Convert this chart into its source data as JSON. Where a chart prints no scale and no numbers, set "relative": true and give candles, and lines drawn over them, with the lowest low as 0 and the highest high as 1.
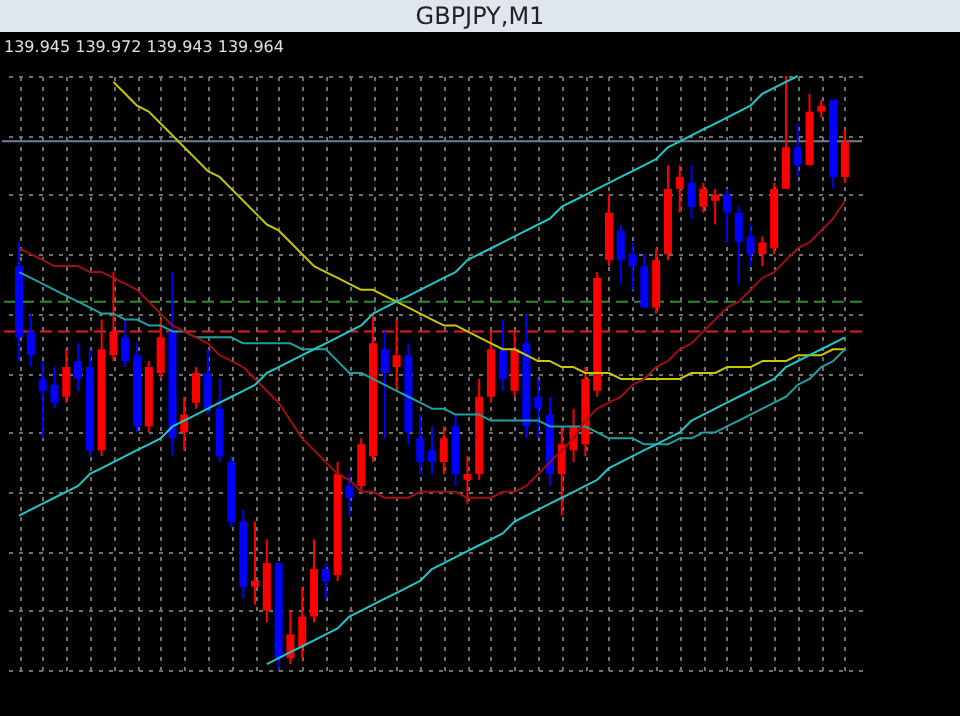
{
  "chart_data": {
    "type": "candlestick",
    "title": "GBPJPY,M1",
    "annotations": [
      "139.945 139.972 139.943 139.964"
    ],
    "relative": true,
    "grid": true,
    "categories": [
      null,
      null,
      null,
      null,
      null,
      null,
      null,
      null,
      null,
      null,
      null,
      null,
      null,
      null,
      null,
      null,
      null,
      null,
      null,
      null,
      null,
      null,
      null,
      null,
      null,
      null,
      null,
      null,
      null,
      null,
      null,
      null,
      null,
      null,
      null,
      null,
      null,
      null,
      null,
      null,
      null,
      null,
      null,
      null,
      null,
      null,
      null,
      null,
      null,
      null,
      null,
      null,
      null,
      null,
      null,
      null,
      null,
      null,
      null,
      null,
      null,
      null,
      null,
      null,
      null,
      null,
      null,
      null,
      null,
      null,
      null
    ],
    "ohlc": [
      [
        0.68,
        0.72,
        0.52,
        0.56
      ],
      [
        0.57,
        0.6,
        0.51,
        0.53
      ],
      [
        0.49,
        0.52,
        0.39,
        0.47
      ],
      [
        0.48,
        0.51,
        0.44,
        0.45
      ],
      [
        0.46,
        0.54,
        0.45,
        0.51
      ],
      [
        0.52,
        0.55,
        0.47,
        0.49
      ],
      [
        0.51,
        0.54,
        0.36,
        0.37
      ],
      [
        0.37,
        0.59,
        0.36,
        0.54
      ],
      [
        0.53,
        0.67,
        0.52,
        0.57
      ],
      [
        0.56,
        0.59,
        0.51,
        0.52
      ],
      [
        0.53,
        0.55,
        0.4,
        0.41
      ],
      [
        0.41,
        0.52,
        0.4,
        0.51
      ],
      [
        0.5,
        0.59,
        0.49,
        0.56
      ],
      [
        0.57,
        0.67,
        0.36,
        0.39
      ],
      [
        0.4,
        0.46,
        0.37,
        0.43
      ],
      [
        0.45,
        0.51,
        0.44,
        0.5
      ],
      [
        0.5,
        0.54,
        0.43,
        0.44
      ],
      [
        0.44,
        0.49,
        0.35,
        0.36
      ],
      [
        0.35,
        0.36,
        0.24,
        0.25
      ],
      [
        0.25,
        0.27,
        0.12,
        0.14
      ],
      [
        0.14,
        0.25,
        0.11,
        0.15
      ],
      [
        0.1,
        0.22,
        0.08,
        0.18
      ],
      [
        0.18,
        0.18,
        0,
        0.02
      ],
      [
        0.02,
        0.1,
        0.01,
        0.06
      ],
      [
        0.04,
        0.14,
        0.02,
        0.09
      ],
      [
        0.09,
        0.22,
        0.08,
        0.17
      ],
      [
        0.17,
        0.18,
        0.12,
        0.15
      ],
      [
        0.16,
        0.35,
        0.15,
        0.33
      ],
      [
        0.31,
        0.33,
        0.26,
        0.29
      ],
      [
        0.31,
        0.39,
        0.3,
        0.38
      ],
      [
        0.36,
        0.6,
        0.35,
        0.55
      ],
      [
        0.54,
        0.57,
        0.39,
        0.5
      ],
      [
        0.51,
        0.59,
        0.47,
        0.53
      ],
      [
        0.53,
        0.55,
        0.38,
        0.4
      ],
      [
        0.39,
        0.43,
        0.33,
        0.35
      ],
      [
        0.37,
        0.41,
        0.33,
        0.35
      ],
      [
        0.35,
        0.41,
        0.33,
        0.39
      ],
      [
        0.41,
        0.43,
        0.31,
        0.33
      ],
      [
        0.32,
        0.36,
        0.28,
        0.33
      ],
      [
        0.33,
        0.49,
        0.32,
        0.46
      ],
      [
        0.46,
        0.57,
        0.45,
        0.54
      ],
      [
        0.54,
        0.59,
        0.47,
        0.49
      ],
      [
        0.47,
        0.57,
        0.46,
        0.54
      ],
      [
        0.55,
        0.6,
        0.39,
        0.41
      ],
      [
        0.46,
        0.49,
        0.39,
        0.44
      ],
      [
        0.43,
        0.46,
        0.31,
        0.33
      ],
      [
        0.33,
        0.41,
        0.26,
        0.38
      ],
      [
        0.37,
        0.44,
        0.35,
        0.41
      ],
      [
        0.38,
        0.51,
        0.36,
        0.49
      ],
      [
        0.47,
        0.67,
        0.46,
        0.66
      ],
      [
        0.69,
        0.8,
        0.68,
        0.77
      ],
      [
        0.74,
        0.75,
        0.65,
        0.69
      ],
      [
        0.7,
        0.72,
        0.64,
        0.68
      ],
      [
        0.68,
        0.7,
        0.61,
        0.61
      ],
      [
        0.61,
        0.71,
        0.6,
        0.69
      ],
      [
        0.7,
        0.85,
        0.69,
        0.81
      ],
      [
        0.81,
        0.85,
        0.77,
        0.83
      ],
      [
        0.82,
        0.85,
        0.76,
        0.78
      ],
      [
        0.78,
        0.82,
        0.77,
        0.81
      ],
      [
        0.79,
        0.81,
        0.75,
        0.8
      ],
      [
        0.8,
        0.81,
        0.72,
        0.77
      ],
      [
        0.77,
        0.78,
        0.65,
        0.72
      ],
      [
        0.73,
        0.75,
        0.68,
        0.7
      ],
      [
        0.7,
        0.73,
        0.68,
        0.72
      ],
      [
        0.71,
        0.82,
        0.7,
        0.81
      ],
      [
        0.81,
        1.0,
        0.81,
        0.88
      ],
      [
        0.88,
        0.92,
        0.83,
        0.85
      ],
      [
        0.85,
        0.97,
        0.85,
        0.94
      ],
      [
        0.94,
        0.96,
        0.93,
        0.95
      ],
      [
        0.96,
        0.96,
        0.81,
        0.83
      ],
      [
        0.83,
        0.91,
        0.82,
        0.89
      ]
    ],
    "colors": [
      "#0000ff",
      "#0000ff",
      "#0000ff",
      "#0000ff",
      "#ff0000",
      "#0000ff",
      "#0000ff",
      "#ff0000",
      "#ff0000",
      "#0000ff",
      "#0000ff",
      "#ff0000",
      "#ff0000",
      "#0000ff",
      "#ff0000",
      "#ff0000",
      "#0000ff",
      "#0000ff",
      "#0000ff",
      "#0000ff",
      "#ff0000",
      "#ff0000",
      "#0000ff",
      "#ff0000",
      "#ff0000",
      "#ff0000",
      "#0000ff",
      "#ff0000",
      "#0000ff",
      "#ff0000",
      "#ff0000",
      "#0000ff",
      "#ff0000",
      "#0000ff",
      "#0000ff",
      "#0000ff",
      "#ff0000",
      "#0000ff",
      "#ff0000",
      "#ff0000",
      "#ff0000",
      "#0000ff",
      "#ff0000",
      "#0000ff",
      "#0000ff",
      "#0000ff",
      "#ff0000",
      "#ff0000",
      "#ff0000",
      "#ff0000",
      "#ff0000",
      "#0000ff",
      "#0000ff",
      "#0000ff",
      "#ff0000",
      "#ff0000",
      "#ff0000",
      "#0000ff",
      "#ff0000",
      "#ff0000",
      "#0000ff",
      "#0000ff",
      "#0000ff",
      "#ff0000",
      "#ff0000",
      "#ff0000",
      "#0000ff",
      "#ff0000",
      "#ff0000",
      "#0000ff",
      "#ff0000"
    ],
    "series": [
      {
        "type": "line",
        "color": "#c8c800",
        "values": [
          null,
          null,
          null,
          null,
          null,
          null,
          null,
          null,
          0.99,
          0.97,
          0.95,
          0.94,
          0.92,
          0.9,
          0.88,
          0.86,
          0.84,
          0.83,
          0.81,
          0.79,
          0.77,
          0.75,
          0.74,
          0.72,
          0.7,
          0.68,
          0.67,
          0.66,
          0.65,
          0.64,
          0.64,
          0.63,
          0.62,
          0.61,
          0.6,
          0.59,
          0.58,
          0.58,
          0.57,
          0.56,
          0.55,
          0.54,
          0.54,
          0.53,
          0.52,
          0.52,
          0.51,
          0.51,
          0.5,
          0.5,
          0.5,
          0.49,
          0.49,
          0.49,
          0.49,
          0.49,
          0.49,
          0.5,
          0.5,
          0.5,
          0.51,
          0.51,
          0.51,
          0.52,
          0.52,
          0.52,
          0.53,
          0.53,
          0.53,
          0.54,
          0.54
        ]
      },
      {
        "type": "line",
        "color": "#20a0a0",
        "values": [
          0.67,
          0.66,
          0.65,
          0.64,
          0.63,
          0.62,
          0.61,
          0.6,
          0.6,
          0.59,
          0.59,
          0.58,
          0.58,
          0.57,
          0.57,
          0.56,
          0.56,
          0.56,
          0.56,
          0.55,
          0.55,
          0.55,
          0.55,
          0.55,
          0.54,
          0.54,
          0.54,
          0.52,
          0.5,
          0.5,
          0.49,
          0.48,
          0.47,
          0.46,
          0.45,
          0.44,
          0.44,
          0.43,
          0.43,
          0.43,
          0.42,
          0.42,
          0.42,
          0.42,
          0.42,
          0.41,
          0.41,
          0.41,
          0.41,
          0.4,
          0.39,
          0.39,
          0.39,
          0.38,
          0.38,
          0.38,
          0.39,
          0.39,
          0.4,
          0.4,
          0.41,
          0.42,
          0.43,
          0.44,
          0.45,
          0.46,
          0.48,
          0.49,
          0.51,
          0.52,
          0.54
        ]
      },
      {
        "type": "line",
        "color": "#a01010",
        "values": [
          0.71,
          0.7,
          0.69,
          0.68,
          0.68,
          0.68,
          0.67,
          0.67,
          0.66,
          0.65,
          0.64,
          0.62,
          0.6,
          0.58,
          0.57,
          0.56,
          0.55,
          0.53,
          0.52,
          0.51,
          0.49,
          0.47,
          0.45,
          0.42,
          0.39,
          0.37,
          0.35,
          0.33,
          0.32,
          0.3,
          0.3,
          0.29,
          0.29,
          0.29,
          0.3,
          0.3,
          0.3,
          0.3,
          0.29,
          0.29,
          0.29,
          0.3,
          0.3,
          0.31,
          0.33,
          0.35,
          0.37,
          0.39,
          0.42,
          0.44,
          0.45,
          0.46,
          0.48,
          0.49,
          0.51,
          0.52,
          0.54,
          0.55,
          0.57,
          0.59,
          0.61,
          0.62,
          0.64,
          0.66,
          0.67,
          0.69,
          0.71,
          0.72,
          0.74,
          0.76,
          0.79
        ]
      },
      {
        "type": "line",
        "color": "#20c8c8",
        "values": [
          0.26,
          0.27,
          0.28,
          0.29,
          0.3,
          0.31,
          0.33,
          0.34,
          0.35,
          0.36,
          0.37,
          0.38,
          0.39,
          0.41,
          0.42,
          0.43,
          0.44,
          0.45,
          0.46,
          0.47,
          0.48,
          0.5,
          0.51,
          0.52,
          0.53,
          0.54,
          0.55,
          0.56,
          0.57,
          0.58,
          0.6,
          0.61,
          0.62,
          0.63,
          0.64,
          0.65,
          0.66,
          0.67,
          0.69,
          0.7,
          0.71,
          0.72,
          0.73,
          0.74,
          0.75,
          0.76,
          0.78,
          0.79,
          0.8,
          0.81,
          0.82,
          0.83,
          0.84,
          0.85,
          0.86,
          0.88,
          0.89,
          0.9,
          0.91,
          0.92,
          0.93,
          0.94,
          0.95,
          0.97,
          0.98,
          0.99,
          1.0,
          null,
          null,
          null,
          null
        ]
      },
      {
        "type": "line",
        "color": "#20c8c8",
        "values": [
          null,
          null,
          null,
          null,
          null,
          null,
          null,
          null,
          null,
          null,
          null,
          null,
          null,
          null,
          null,
          null,
          null,
          null,
          null,
          null,
          null,
          0.01,
          0.02,
          0.03,
          0.04,
          0.05,
          0.06,
          0.07,
          0.09,
          0.1,
          0.11,
          0.12,
          0.13,
          0.14,
          0.15,
          0.17,
          0.18,
          0.19,
          0.2,
          0.21,
          0.22,
          0.23,
          0.25,
          0.26,
          0.27,
          0.28,
          0.29,
          0.3,
          0.31,
          0.32,
          0.34,
          0.35,
          0.36,
          0.37,
          0.38,
          0.39,
          0.4,
          0.42,
          0.43,
          0.44,
          0.45,
          0.46,
          0.47,
          0.48,
          0.49,
          0.51,
          0.52,
          0.53,
          0.54,
          0.55,
          0.56
        ]
      }
    ],
    "ref_lines": [
      {
        "axis": "y",
        "value": 0.89,
        "label": null,
        "color": "#708090",
        "line_style": "solid"
      },
      {
        "axis": "y",
        "value": 0.62,
        "label": null,
        "color": "#2e8b2e",
        "line_style": "dashed"
      },
      {
        "axis": "y",
        "value": 0.57,
        "label": null,
        "color": "#e02020",
        "line_style": "dashed"
      }
    ]
  }
}
